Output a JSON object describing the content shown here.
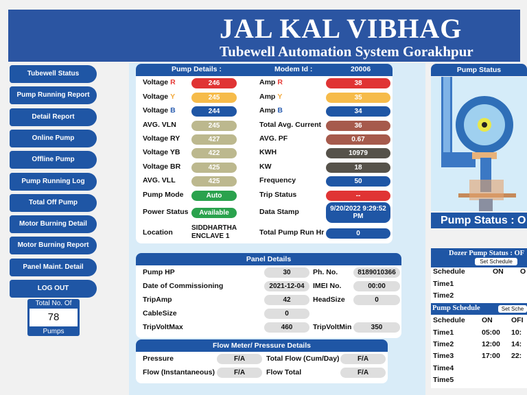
{
  "header": {
    "title": "JAL KAL VIBHAG",
    "subtitle": "Tubewell Automation System Gorakhpur"
  },
  "menu": [
    "Tubewell Status",
    "Pump Running Report",
    "Detail Report",
    "Online Pump",
    "Offline Pump",
    "Pump Running Log",
    "Total Off Pump",
    "Motor Burning Detail",
    "Motor Burning Report",
    "Panel Maint. Detail",
    "LOG OUT"
  ],
  "pump_count": {
    "label": "Total No. Of",
    "value": 78,
    "unit": "Pumps"
  },
  "pump_details": {
    "title": "Pump Details :",
    "modem_label": "Modem Id :",
    "modem_id": 20006,
    "rows": [
      [
        {
          "label": "Voltage",
          "phase": "R",
          "phase_color": "#e53935",
          "value": 246,
          "color": "#e03434"
        },
        {
          "label": "Amp",
          "phase": "R",
          "phase_color": "#e53935",
          "value": 38,
          "color": "#e03434"
        }
      ],
      [
        {
          "label": "Voltage",
          "phase": "Y",
          "phase_color": "#f2a93b",
          "value": 245,
          "color": "#f6bb4a"
        },
        {
          "label": "Amp",
          "phase": "Y",
          "phase_color": "#f2a93b",
          "value": 35,
          "color": "#f6bb4a"
        }
      ],
      [
        {
          "label": "Voltage",
          "phase": "B",
          "phase_color": "#2a5db0",
          "value": 244,
          "color": "#1f56a5"
        },
        {
          "label": "Amp",
          "phase": "B",
          "phase_color": "#2a5db0",
          "value": 34,
          "color": "#1f56a5"
        }
      ],
      [
        {
          "label": "AVG. VLN",
          "value": 245,
          "color": "#bcb88e"
        },
        {
          "label": "Total Avg. Current",
          "value": 36,
          "color": "#a65a4c"
        }
      ],
      [
        {
          "label": "Voltage RY",
          "value": 427,
          "color": "#bcb88e"
        },
        {
          "label": "AVG. PF",
          "value": 0.67,
          "color": "#a65a4c"
        }
      ],
      [
        {
          "label": "Voltage YB",
          "value": 422,
          "color": "#bcb88e"
        },
        {
          "label": "KWH",
          "value": 10979,
          "color": "#56524a"
        }
      ],
      [
        {
          "label": "Voltage BR",
          "value": 425,
          "color": "#bcb88e"
        },
        {
          "label": "KW",
          "value": 18,
          "color": "#56524a"
        }
      ],
      [
        {
          "label": "AVG. VLL",
          "value": 425,
          "color": "#bcb88e"
        },
        {
          "label": "Frequency",
          "value": 50,
          "color": "#1f56a5"
        }
      ],
      [
        {
          "label": "Pump Mode",
          "value": "Auto",
          "color": "#2aa24d"
        },
        {
          "label": "Trip Status",
          "value": "--",
          "color": "#e03434"
        }
      ],
      [
        {
          "label": "Power Status",
          "value": "Available",
          "color": "#2aa24d"
        },
        {
          "label": "Data Stamp",
          "value": "9/20/2022 9:29:52 PM",
          "color": "#1f56a5"
        }
      ],
      [
        {
          "label": "Location",
          "value": "SIDDHARTHA ENCLAVE 1"
        },
        {
          "label": "Total Pump Run Hr",
          "value": 0,
          "color": "#1f56a5"
        }
      ]
    ]
  },
  "panel_details": {
    "title": "Panel Details",
    "rows": [
      [
        {
          "label": "Pump HP",
          "value": 30
        },
        {
          "label": "Ph. No.",
          "value": 8189010366
        }
      ],
      [
        {
          "label": "Date of Commissioning",
          "value": "2021-12-04"
        },
        {
          "label": "IMEI No.",
          "value": "00:00"
        }
      ],
      [
        {
          "label": "TripAmp",
          "value": 42
        },
        {
          "label": "HeadSize",
          "value": 0
        }
      ],
      [
        {
          "label": "CableSize",
          "value": 0
        }
      ],
      [
        {
          "label": "TripVoltMax",
          "value": 460
        },
        {
          "label": "TripVoltMin",
          "value": 350
        }
      ]
    ]
  },
  "flow_details": {
    "title": "Flow Meter/ Pressure Details",
    "rows": [
      [
        {
          "label": "Pressure",
          "value": "F/A"
        },
        {
          "label": "Total Flow (Cum/Day)",
          "value": "F/A"
        }
      ],
      [
        {
          "label": "Flow (Instantaneous)",
          "value": "F/A"
        },
        {
          "label": "Flow Total",
          "value": "F/A"
        }
      ]
    ]
  },
  "pump_status": {
    "title": "Pump Status",
    "status": "Pump Status : O"
  },
  "dozer": {
    "title": "Dozer Pump Status : OF",
    "button": "Set Schedule",
    "rows": [
      [
        "Schedule",
        "ON",
        "O"
      ],
      [
        "Time1"
      ],
      [
        "Time2"
      ]
    ]
  },
  "schedule": {
    "title": "Pump Schedule",
    "button": "Set Sche",
    "rows": [
      [
        "Schedule",
        "ON",
        "OFI"
      ],
      [
        "Time1",
        "05:00",
        "10:"
      ],
      [
        "Time2",
        "12:00",
        "14:"
      ],
      [
        "Time3",
        "17:00",
        "22:"
      ],
      [
        "Time4"
      ],
      [
        "Time5"
      ]
    ]
  }
}
